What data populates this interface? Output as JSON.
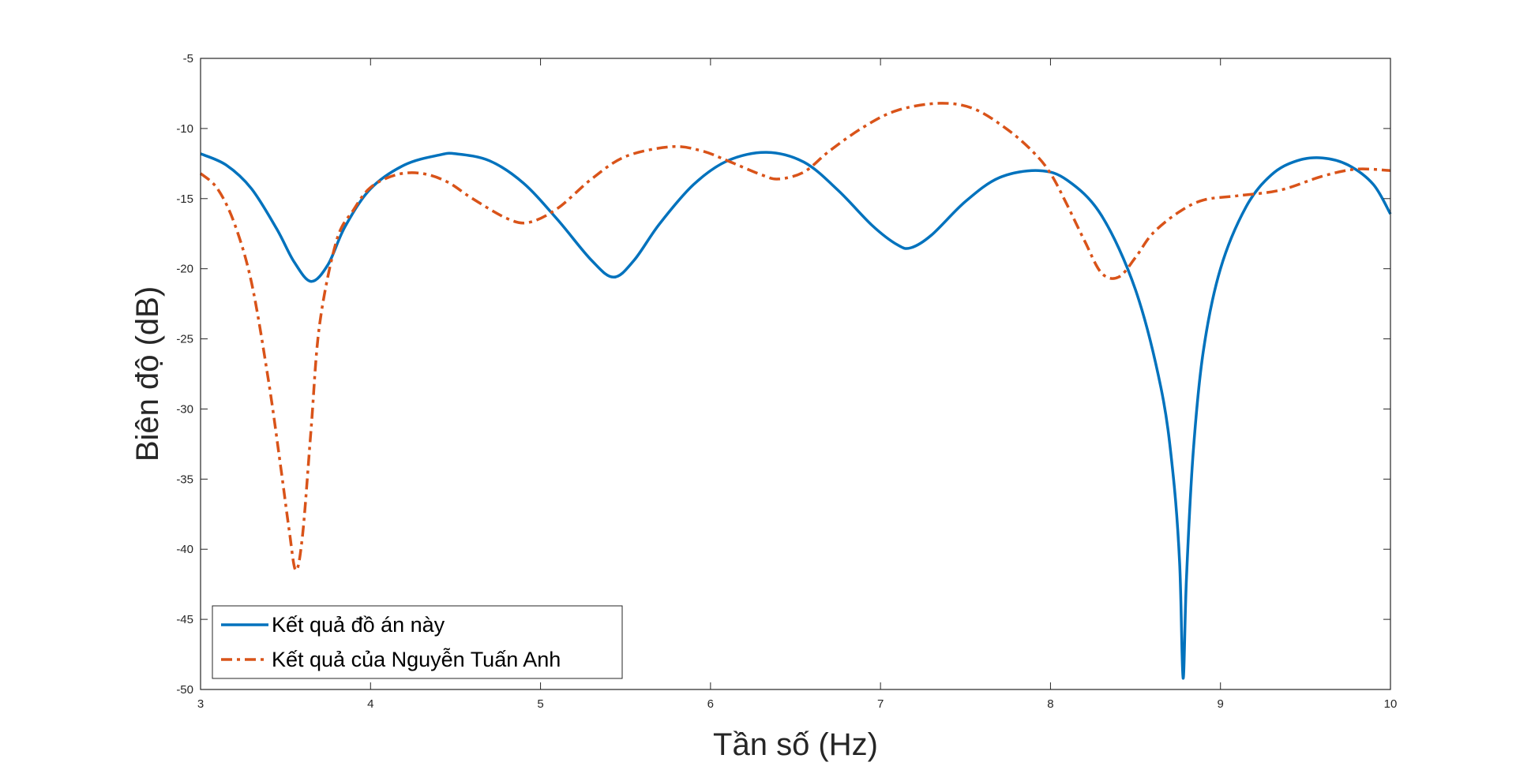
{
  "chart_data": {
    "type": "line",
    "title": "",
    "xlabel": "Tần số (Hz)",
    "ylabel": "Biên độ (dB)",
    "xlim": [
      3,
      10
    ],
    "ylim": [
      -50,
      -5
    ],
    "xticks": [
      "3",
      "4",
      "5",
      "6",
      "7",
      "8",
      "9",
      "10"
    ],
    "yticks": [
      "-5",
      "-10",
      "-15",
      "-20",
      "-25",
      "-30",
      "-35",
      "-40",
      "-45",
      "-50"
    ],
    "grid": false,
    "legend_position": "bottom-left",
    "series": [
      {
        "name": "Kết quả đồ án này",
        "color": "#0072BD",
        "line_style": "solid",
        "x": [
          3.0,
          3.15,
          3.3,
          3.45,
          3.55,
          3.65,
          3.75,
          3.85,
          4.0,
          4.2,
          4.4,
          4.5,
          4.7,
          4.9,
          5.1,
          5.3,
          5.43,
          5.55,
          5.7,
          5.9,
          6.1,
          6.33,
          6.55,
          6.75,
          6.95,
          7.1,
          7.18,
          7.3,
          7.5,
          7.7,
          7.93,
          8.1,
          8.3,
          8.5,
          8.65,
          8.72,
          8.76,
          8.78,
          8.8,
          8.84,
          8.9,
          9.0,
          9.15,
          9.3,
          9.45,
          9.6,
          9.75,
          9.9,
          10.0
        ],
        "y": [
          -11.8,
          -12.6,
          -14.3,
          -17.2,
          -19.5,
          -20.9,
          -19.7,
          -17.0,
          -14.3,
          -12.6,
          -11.9,
          -11.8,
          -12.3,
          -13.9,
          -16.5,
          -19.4,
          -20.6,
          -19.4,
          -16.8,
          -14.0,
          -12.3,
          -11.7,
          -12.4,
          -14.4,
          -16.9,
          -18.3,
          -18.5,
          -17.6,
          -15.2,
          -13.5,
          -13.0,
          -13.7,
          -16.2,
          -21.5,
          -28.5,
          -34.5,
          -41.0,
          -49.2,
          -42.0,
          -33.0,
          -25.8,
          -20.0,
          -15.6,
          -13.3,
          -12.3,
          -12.1,
          -12.6,
          -14.0,
          -16.1
        ]
      },
      {
        "name": "Kết quả của Nguyễn Tuấn Anh",
        "color": "#D95319",
        "line_style": "dash-dot",
        "x": [
          3.0,
          3.1,
          3.2,
          3.3,
          3.4,
          3.47,
          3.52,
          3.56,
          3.6,
          3.65,
          3.7,
          3.8,
          3.9,
          4.0,
          4.15,
          4.3,
          4.45,
          4.6,
          4.8,
          4.93,
          5.1,
          5.3,
          5.5,
          5.77,
          5.95,
          6.1,
          6.3,
          6.4,
          6.55,
          6.7,
          6.9,
          7.1,
          7.35,
          7.55,
          7.75,
          7.9,
          8.0,
          8.1,
          8.2,
          8.3,
          8.4,
          8.5,
          8.6,
          8.75,
          8.9,
          9.1,
          9.35,
          9.6,
          9.8,
          10.0
        ],
        "y": [
          -13.2,
          -14.3,
          -16.8,
          -21.0,
          -28.0,
          -34.0,
          -38.5,
          -41.5,
          -39.0,
          -31.5,
          -24.0,
          -18.0,
          -15.8,
          -14.2,
          -13.3,
          -13.2,
          -13.8,
          -15.0,
          -16.4,
          -16.7,
          -15.7,
          -13.6,
          -12.0,
          -11.3,
          -11.6,
          -12.3,
          -13.3,
          -13.6,
          -13.1,
          -11.6,
          -9.9,
          -8.7,
          -8.2,
          -8.6,
          -10.1,
          -11.7,
          -13.2,
          -15.5,
          -18.0,
          -20.3,
          -20.6,
          -19.2,
          -17.5,
          -16.0,
          -15.1,
          -14.8,
          -14.4,
          -13.4,
          -12.9,
          -13.0
        ]
      }
    ]
  }
}
